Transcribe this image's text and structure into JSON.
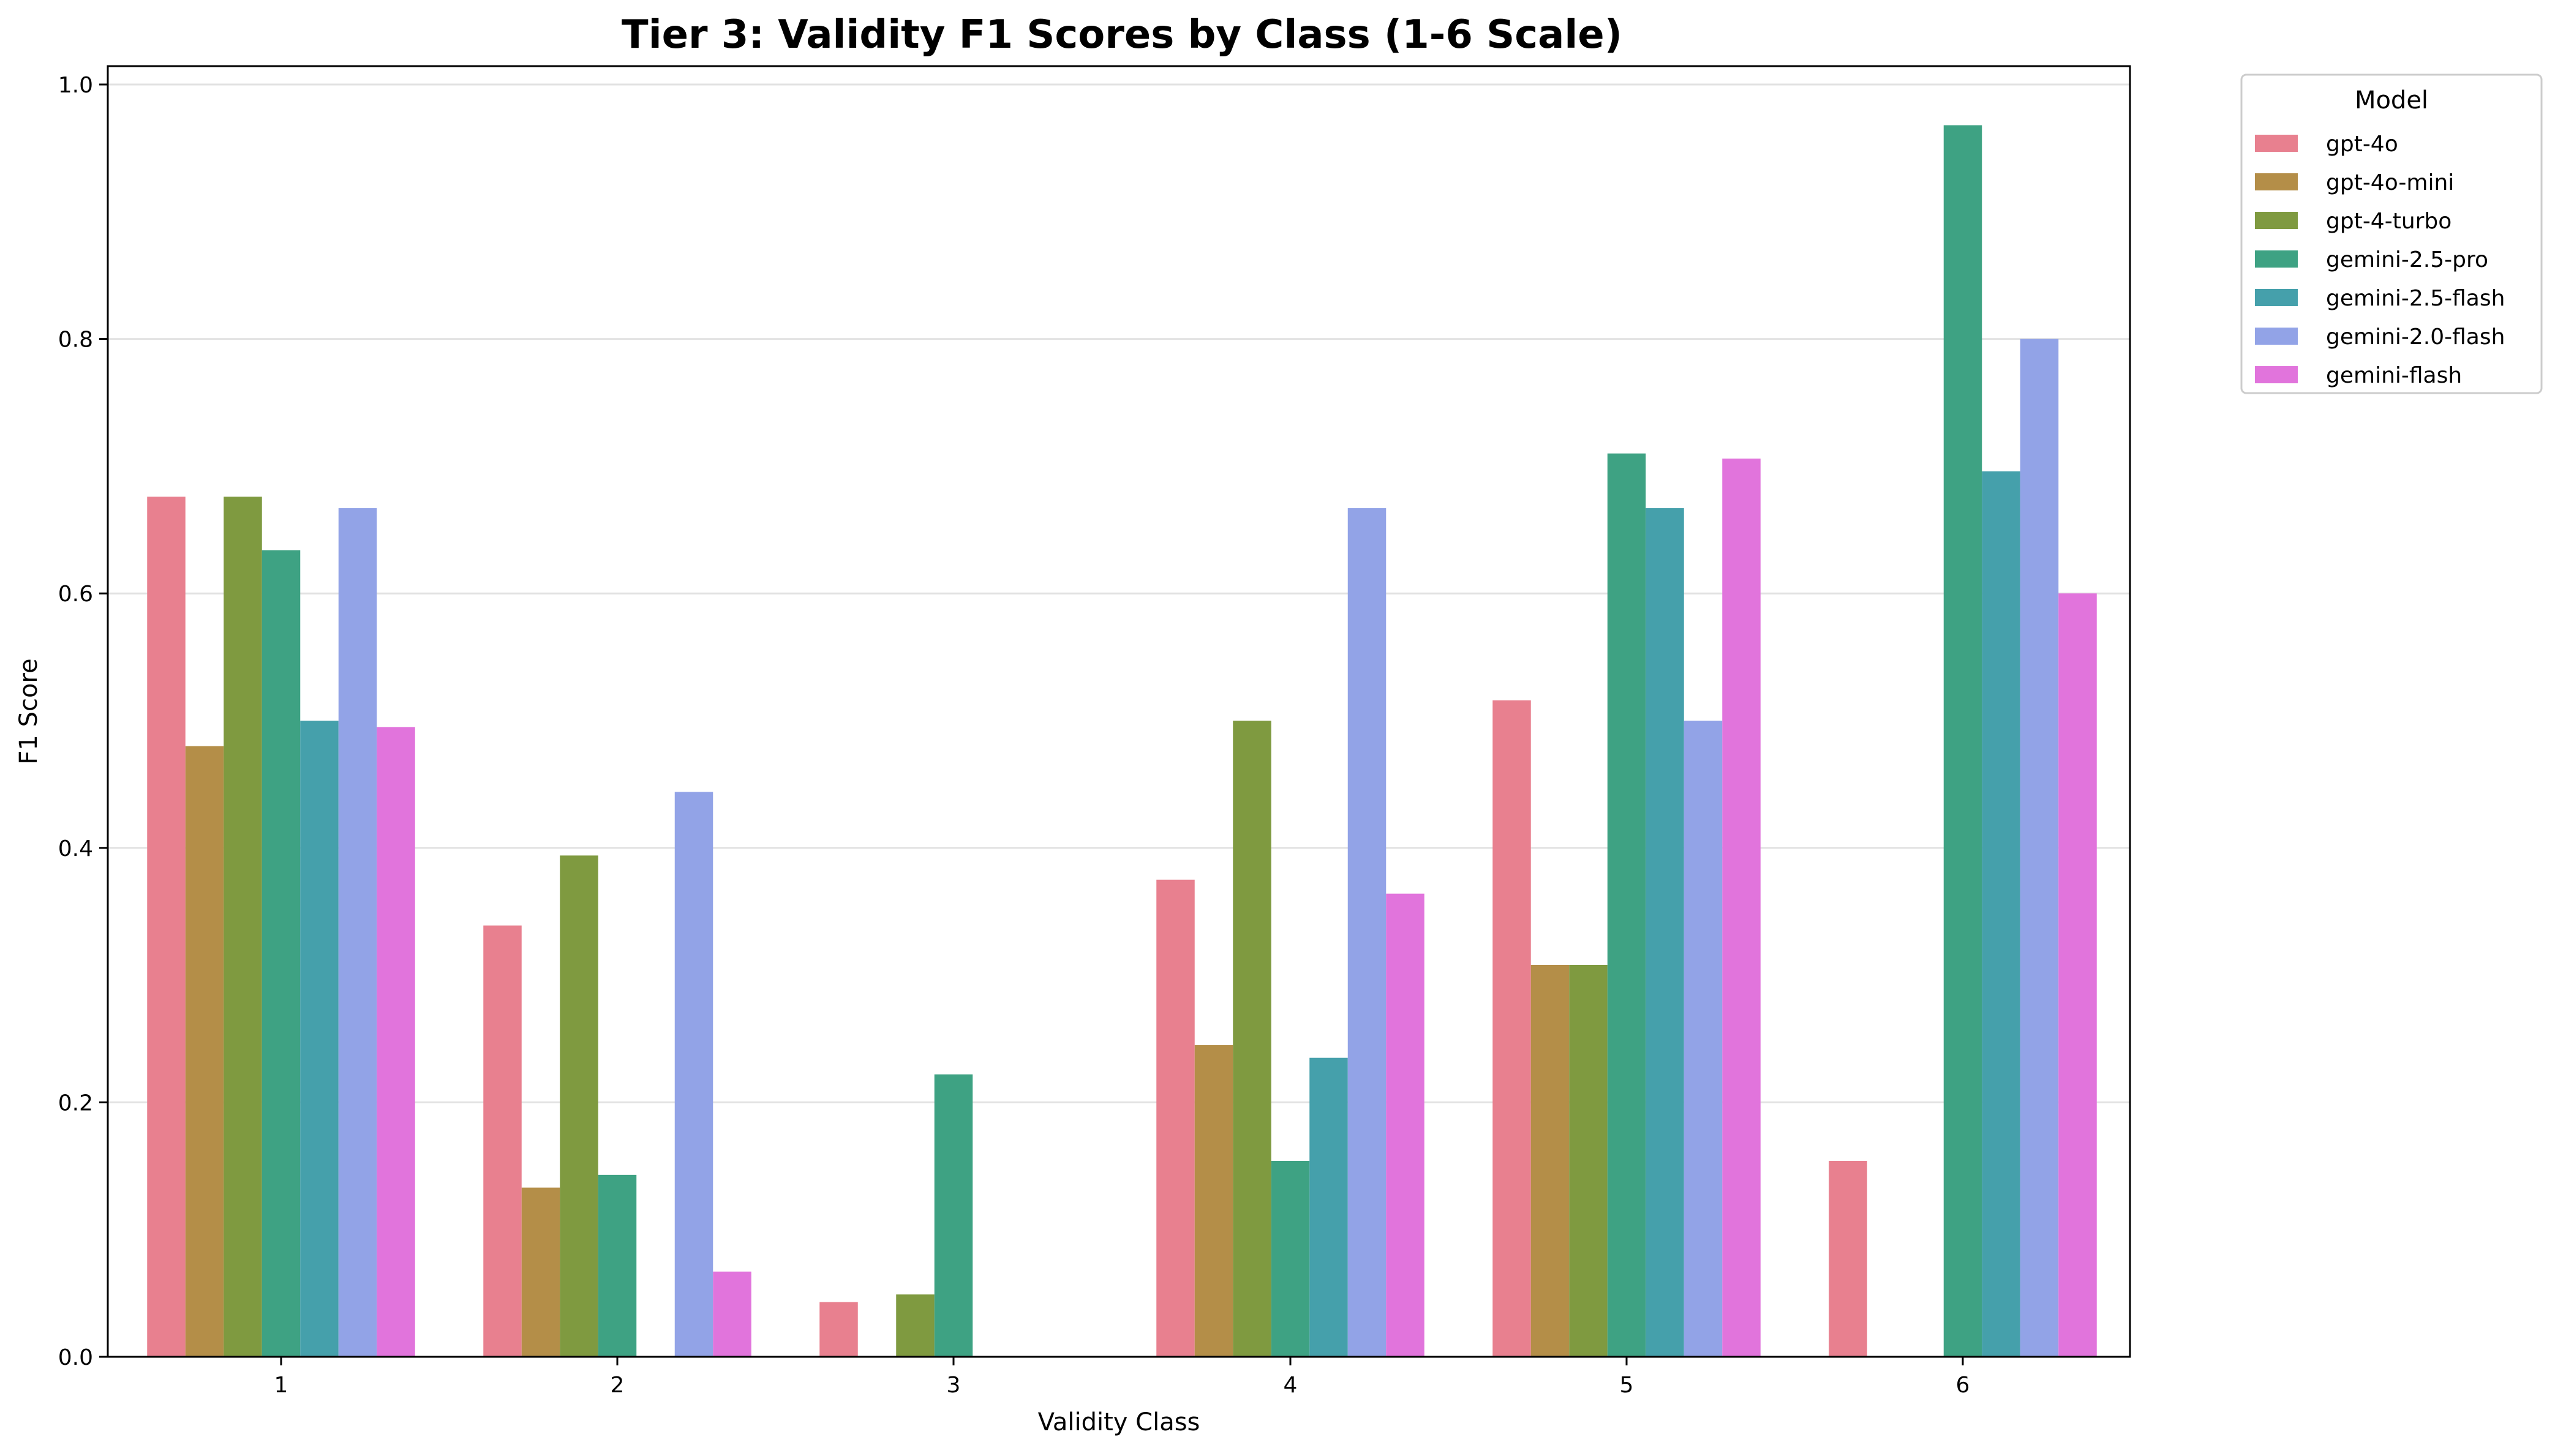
{
  "chart_data": {
    "type": "bar",
    "title": "Tier 3: Validity F1 Scores by Class (1-6 Scale)",
    "xlabel": "Validity Class",
    "ylabel": "F1 Score",
    "ylim": [
      0,
      1.0
    ],
    "yticks": [
      0.0,
      0.2,
      0.4,
      0.6,
      0.8,
      1.0
    ],
    "ytick_labels": [
      "0.0",
      "0.2",
      "0.4",
      "0.6",
      "0.8",
      "1.0"
    ],
    "grid": "y",
    "categories": [
      "1",
      "2",
      "3",
      "4",
      "5",
      "6"
    ],
    "legend": {
      "title": "Model",
      "placement": "outside-top-right"
    },
    "series": [
      {
        "name": "gpt-4o",
        "color": "#e8808f",
        "values": [
          0.676,
          0.339,
          0.043,
          0.375,
          0.516,
          0.154
        ]
      },
      {
        "name": "gpt-4o-mini",
        "color": "#b48e48",
        "values": [
          0.48,
          0.133,
          0.0,
          0.245,
          0.308,
          0.0
        ]
      },
      {
        "name": "gpt-4-turbo",
        "color": "#7f9a40",
        "values": [
          0.676,
          0.394,
          0.049,
          0.5,
          0.308,
          0.0
        ]
      },
      {
        "name": "gemini-2.5-pro",
        "color": "#3ea283",
        "values": [
          0.634,
          0.143,
          0.222,
          0.154,
          0.71,
          0.968
        ]
      },
      {
        "name": "gemini-2.5-flash",
        "color": "#45a0ab",
        "values": [
          0.5,
          0.0,
          0.0,
          0.235,
          0.667,
          0.696
        ]
      },
      {
        "name": "gemini-2.0-flash",
        "color": "#92a3e7",
        "values": [
          0.667,
          0.444,
          0.0,
          0.667,
          0.5,
          0.8
        ]
      },
      {
        "name": "gemini-flash",
        "color": "#e174dc",
        "values": [
          0.495,
          0.067,
          0.0,
          0.364,
          0.706,
          0.6
        ]
      }
    ]
  }
}
